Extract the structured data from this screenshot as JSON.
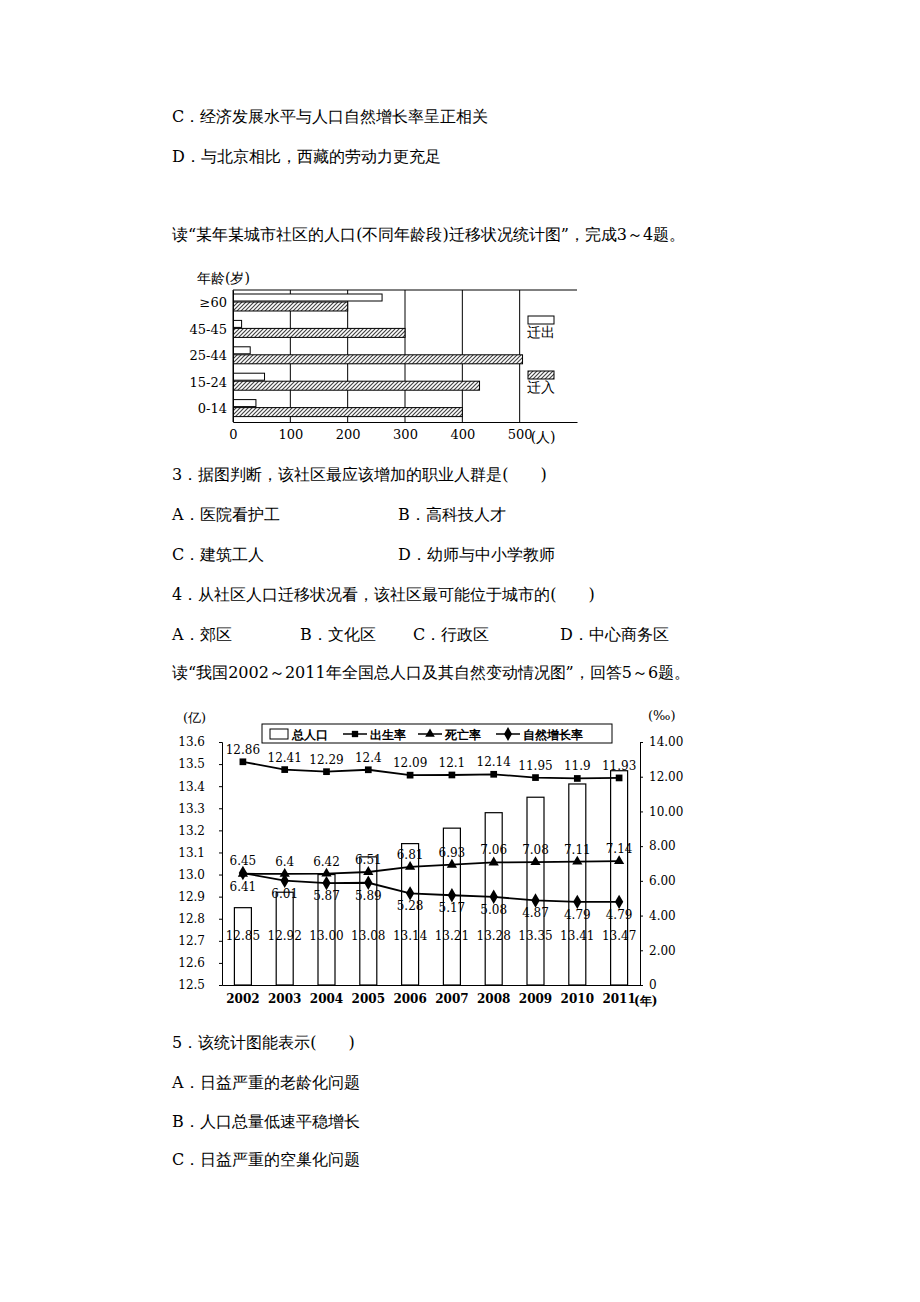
{
  "document": {
    "lines": [
      [
        "C．经济发展水平与人口自然增长率呈正相关"
      ],
      [
        "D．与北京相比，西藏的劳动力更充足"
      ],
      [
        "读“某年某城市社区的人口(不同年龄段)迁移状况统计图”，完成3～4题。"
      ],
      [
        "3．据图判断，该社区最应该增加的职业人群是(　　)"
      ],
      [
        "A．医院看护工",
        "B．高科技人才"
      ],
      [
        "C．建筑工人",
        "D．幼师与中小学教师"
      ],
      [
        "4．从社区人口迁移状况看，该社区最可能位于城市的(　　)"
      ],
      [
        "A．郊区",
        "B．文化区",
        "C．行政区",
        "D．中心商务区"
      ],
      [
        "读“我国2002～2011年全国总人口及其自然变动情况图”，回答5～6题。"
      ],
      [
        "5．该统计图能表示(　　)"
      ],
      [
        "A．日益严重的老龄化问题"
      ],
      [
        "B．人口总量低速平稳增长"
      ],
      [
        "C．日益严重的空巢化问题"
      ]
    ]
  },
  "chart_data": [
    {
      "type": "bar",
      "orientation": "horizontal",
      "y_label": "年龄(岁)",
      "x_label": "(人)",
      "categories": [
        "≥60",
        "45-45",
        "25-44",
        "15-24",
        "0-14"
      ],
      "series": [
        {
          "name": "迁出",
          "color": "#ffffff",
          "values": [
            260,
            15,
            30,
            55,
            40
          ]
        },
        {
          "name": "迁入",
          "color": "#444444",
          "values": [
            200,
            300,
            505,
            430,
            400
          ]
        }
      ],
      "xlim": [
        0,
        600
      ],
      "xticks": [
        0,
        100,
        200,
        300,
        400,
        500
      ],
      "grid": true,
      "legend": "right"
    },
    {
      "type": "bar",
      "y_label": "(亿)",
      "y2_label": "(‰)",
      "x_label": "(年)",
      "categories": [
        "2002",
        "2003",
        "2004",
        "2005",
        "2006",
        "2007",
        "2008",
        "2009",
        "2010",
        "2011"
      ],
      "series": [
        {
          "name": "总人口",
          "type": "bar",
          "color": "#ffffff",
          "values": [
            12.85,
            12.92,
            13.0,
            13.08,
            13.14,
            13.21,
            13.28,
            13.35,
            13.41,
            13.47
          ],
          "value_labels": [
            "12.85",
            "12.92",
            "13.00",
            "13.08",
            "13.14",
            "13.21",
            "13.28",
            "13.35",
            "13.41",
            "13.47"
          ]
        },
        {
          "name": "出生率",
          "type": "line",
          "axis": "y2",
          "marker": "square",
          "color": "#000000",
          "values": [
            12.86,
            12.41,
            12.29,
            12.4,
            12.09,
            12.1,
            12.14,
            11.95,
            11.9,
            11.93
          ]
        },
        {
          "name": "死亡率",
          "type": "line",
          "axis": "y2",
          "marker": "triangle",
          "color": "#000000",
          "values": [
            6.41,
            6.4,
            6.42,
            6.51,
            6.81,
            6.93,
            7.06,
            7.08,
            7.11,
            7.14
          ]
        },
        {
          "name": "自然增长率",
          "type": "line",
          "axis": "y2",
          "marker": "diamond",
          "color": "#000000",
          "values": [
            6.45,
            6.01,
            5.87,
            5.89,
            5.28,
            5.17,
            5.08,
            4.87,
            4.79,
            4.79
          ]
        }
      ],
      "ylim": [
        12.5,
        13.6
      ],
      "yticks": [
        12.5,
        12.6,
        12.7,
        12.8,
        12.9,
        {
          "value": 13,
          "label": "13.0"
        },
        13.1,
        13.2,
        13.3,
        13.4,
        13.5,
        13.6
      ],
      "y2lim": [
        0,
        14
      ],
      "y2ticks": [
        0,
        {
          "value": 2,
          "label": "2.00"
        },
        {
          "value": 4,
          "label": "4.00"
        },
        {
          "value": 6,
          "label": "6.00"
        },
        {
          "value": 8,
          "label": "8.00"
        },
        {
          "value": 10,
          "label": "10.00"
        },
        {
          "value": 12,
          "label": "12.00"
        },
        {
          "value": 14,
          "label": "14.00"
        }
      ],
      "data_labels": true,
      "legend": "top"
    }
  ]
}
